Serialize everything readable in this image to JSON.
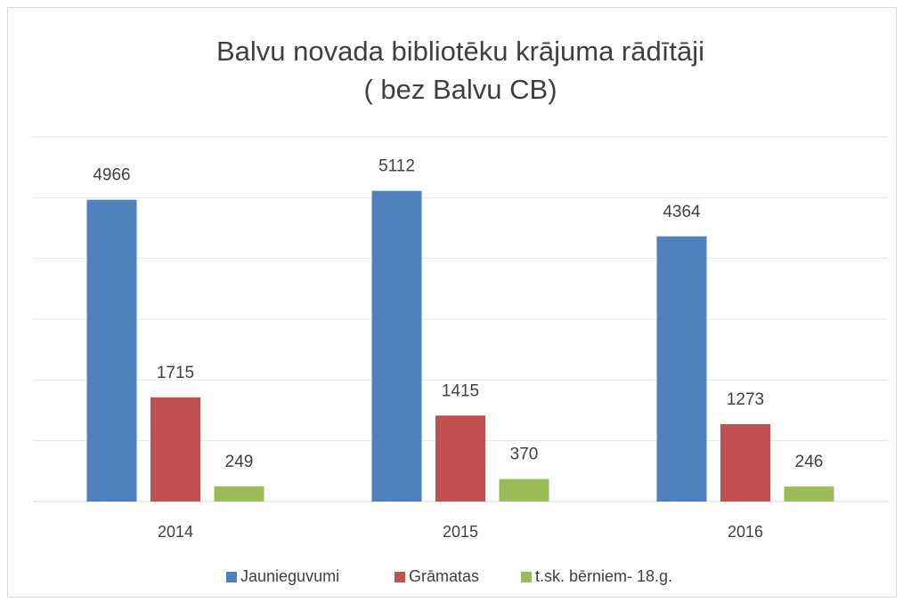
{
  "chart_data": {
    "type": "bar",
    "title": [
      "Balvu novada bibliotēku krājuma rādītāji",
      "( bez Balvu CB)"
    ],
    "categories": [
      "2014",
      "2015",
      "2016"
    ],
    "series": [
      {
        "name": "Jaunieguvumi",
        "color": "#4f81bd",
        "values": [
          4966,
          5112,
          4364
        ]
      },
      {
        "name": "Grāmatas",
        "color": "#c0504d",
        "values": [
          1715,
          1415,
          1273
        ]
      },
      {
        "name": "t.sk. bērniem- 18.g.",
        "color": "#9bbb59",
        "values": [
          249,
          370,
          246
        ]
      }
    ],
    "ylim": [
      0,
      6000
    ],
    "yticks": [
      0,
      1000,
      2000,
      3000,
      4000,
      5000,
      6000
    ],
    "grid": true,
    "legend": "bottom"
  }
}
